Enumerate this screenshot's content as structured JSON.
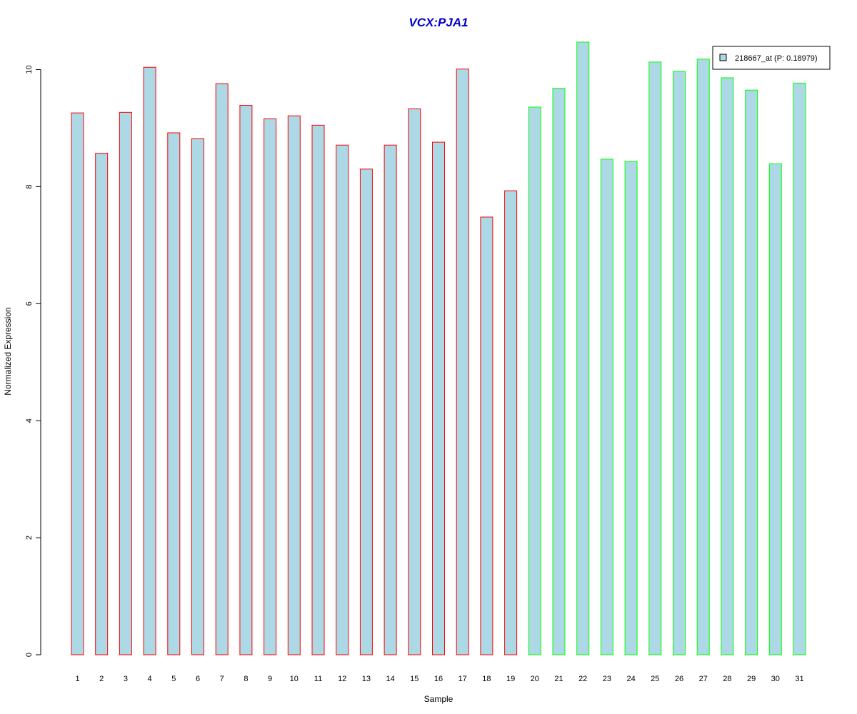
{
  "chart_data": {
    "type": "bar",
    "title": "VCX:PJA1",
    "xlabel": "Sample",
    "ylabel": "Normalized Expression",
    "ylim": [
      0,
      10.5
    ],
    "yticks": [
      0,
      2,
      4,
      6,
      8,
      10
    ],
    "grid": false,
    "legend_position": "top-right",
    "categories": [
      "1",
      "2",
      "3",
      "4",
      "5",
      "6",
      "7",
      "8",
      "9",
      "10",
      "11",
      "12",
      "13",
      "14",
      "15",
      "16",
      "17",
      "18",
      "19",
      "20",
      "21",
      "22",
      "23",
      "24",
      "25",
      "26",
      "27",
      "28",
      "29",
      "30",
      "31"
    ],
    "series": [
      {
        "name": "218667_at (P: 0.18979)",
        "fill": "#add8e6",
        "values": [
          9.26,
          8.57,
          9.27,
          10.04,
          8.92,
          8.82,
          9.76,
          9.39,
          9.16,
          9.21,
          9.05,
          8.71,
          8.3,
          8.71,
          9.33,
          8.76,
          10.01,
          7.48,
          7.93,
          9.36,
          9.68,
          10.47,
          8.47,
          8.43,
          10.13,
          9.97,
          10.18,
          9.86,
          9.65,
          8.39,
          9.77
        ],
        "borders": [
          "#ff0000",
          "#ff0000",
          "#ff0000",
          "#ff0000",
          "#ff0000",
          "#ff0000",
          "#ff0000",
          "#ff0000",
          "#ff0000",
          "#ff0000",
          "#ff0000",
          "#ff0000",
          "#ff0000",
          "#ff0000",
          "#ff0000",
          "#ff0000",
          "#ff0000",
          "#ff0000",
          "#ff0000",
          "#00ff00",
          "#00ff00",
          "#00ff00",
          "#00ff00",
          "#00ff00",
          "#00ff00",
          "#00ff00",
          "#00ff00",
          "#00ff00",
          "#00ff00",
          "#00ff00",
          "#00ff00"
        ]
      }
    ],
    "colors": {
      "title": "#0000cd",
      "bar_fill": "#add8e6",
      "group1_border": "#ff0000",
      "group2_border": "#00ff00"
    }
  }
}
